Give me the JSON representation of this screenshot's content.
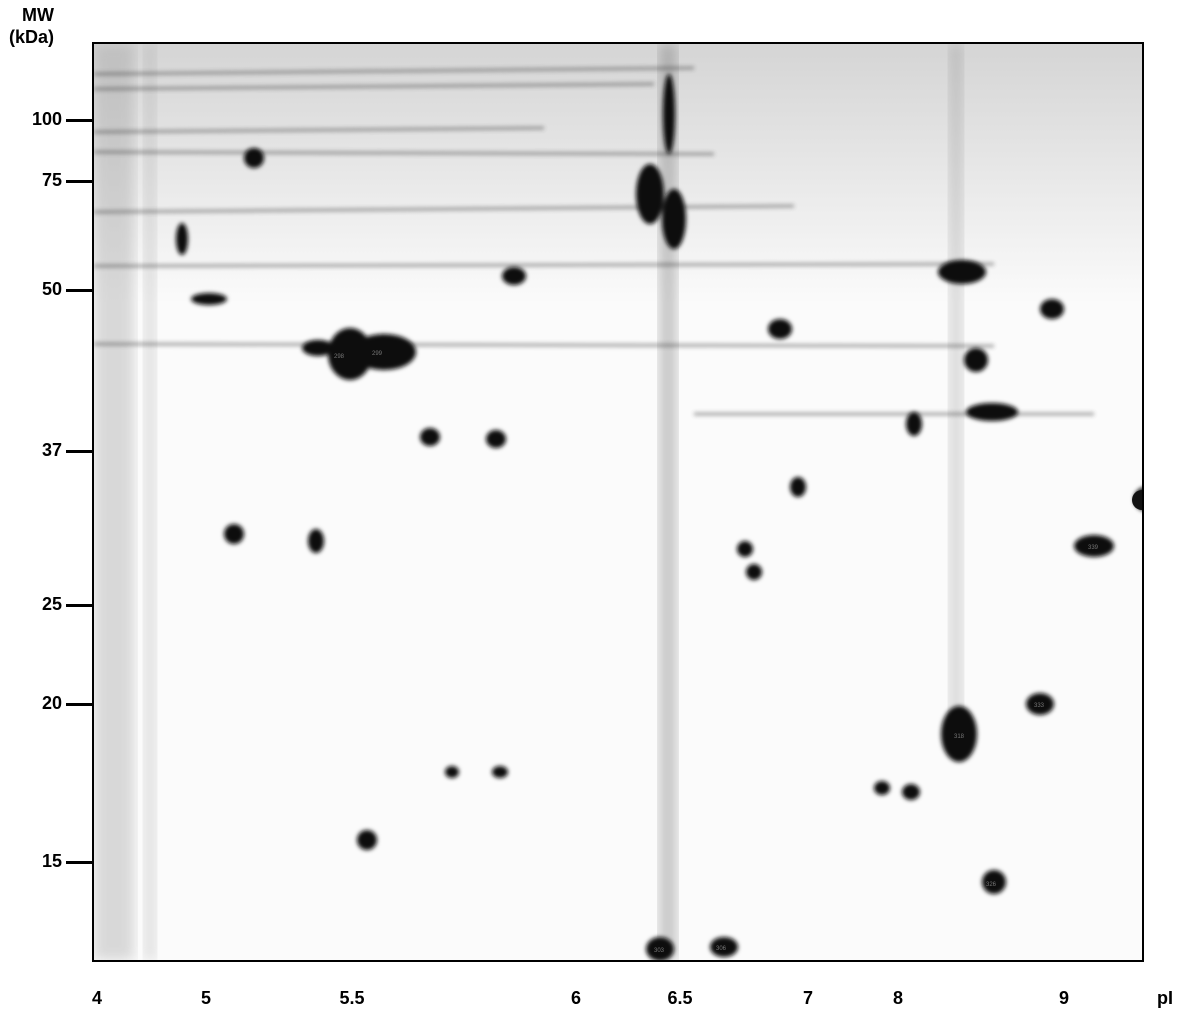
{
  "axis_y": {
    "title_line1": "MW",
    "title_line2": "(kDa)",
    "ticks": [
      "100",
      "75",
      "50",
      "37",
      "25",
      "20",
      "15"
    ]
  },
  "axis_x": {
    "title": "pI",
    "ticks": [
      "4",
      "5",
      "5.5",
      "6",
      "6.5",
      "7",
      "8",
      "9"
    ]
  },
  "colors": {
    "background": "#ffffff",
    "spot": "#111111",
    "smear": "#888888"
  }
}
